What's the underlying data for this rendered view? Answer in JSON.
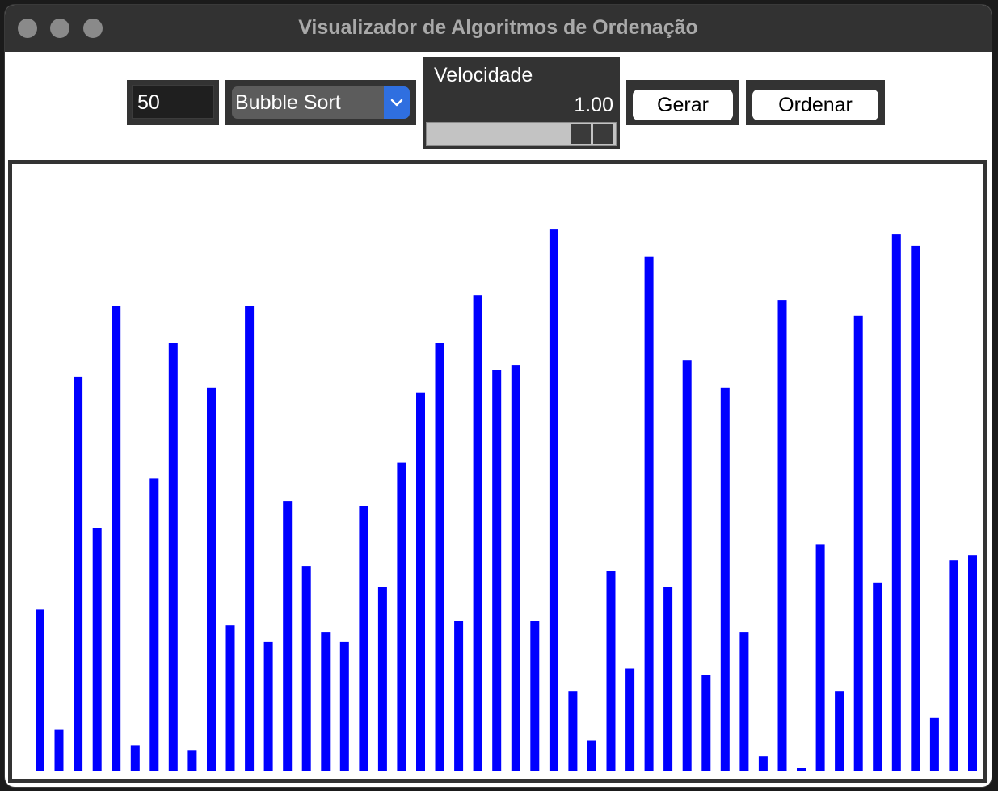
{
  "window": {
    "title": "Visualizador de Algoritmos de Ordenação"
  },
  "controls": {
    "size_value": "50",
    "algorithm_selected": "Bubble Sort",
    "speed_label": "Velocidade",
    "speed_value": "1.00",
    "speed_fraction": 1.0,
    "generate_label": "Gerar",
    "sort_label": "Ordenar"
  },
  "colors": {
    "bar": "#0000ff",
    "panel": "#333333",
    "select_accent": "#2f6fe0"
  },
  "chart_data": {
    "type": "bar",
    "title": "",
    "xlabel": "",
    "ylabel": "",
    "grid": false,
    "values": [
      202,
      52,
      494,
      304,
      582,
      32,
      366,
      536,
      26,
      480,
      182,
      582,
      162,
      338,
      256,
      174,
      162,
      332,
      230,
      386,
      474,
      536,
      188,
      596,
      502,
      508,
      188,
      678,
      100,
      38,
      250,
      128,
      644,
      230,
      514,
      120,
      480,
      174,
      18,
      590,
      3,
      284,
      100,
      570,
      236,
      672,
      658,
      66,
      264,
      270
    ],
    "ylim": [
      0,
      750
    ]
  }
}
